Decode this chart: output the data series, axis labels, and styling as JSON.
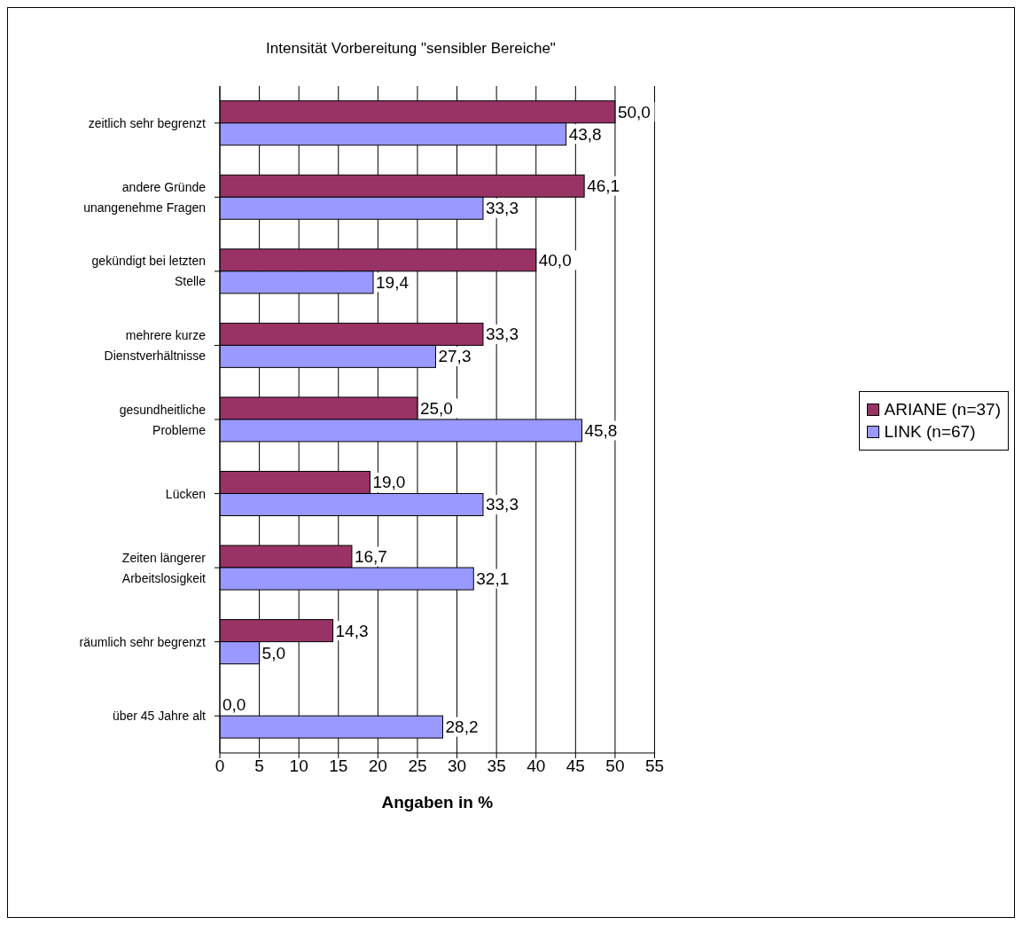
{
  "chart_data": {
    "type": "bar",
    "orientation": "horizontal",
    "title": "Intensität Vorbereitung \"sensibler Bereiche\"",
    "xlabel": "Angaben in %",
    "categories": [
      "zeitlich sehr begrenzt",
      "andere Gründe\nunangenehme Fragen",
      "gekündigt bei letzten\nStelle",
      "mehrere kurze\nDienstverhältnisse",
      "gesundheitliche\nProbleme",
      "Lücken",
      "Zeiten längerer\nArbeitslosigkeit",
      "räumlich sehr begrenzt",
      "über 45 Jahre alt"
    ],
    "series": [
      {
        "name": "ARIANE (n=37)",
        "color": "#993366",
        "values": [
          50.0,
          46.1,
          40.0,
          33.3,
          25.0,
          19.0,
          16.7,
          14.3,
          0.0
        ],
        "value_labels": [
          "50,0",
          "46,1",
          "40,0",
          "33,3",
          "25,0",
          "19,0",
          "16,7",
          "14,3",
          "0,0"
        ]
      },
      {
        "name": "LINK (n=67)",
        "color": "#9999ff",
        "values": [
          43.8,
          33.3,
          19.4,
          27.3,
          45.8,
          33.3,
          32.1,
          5.0,
          28.2
        ],
        "value_labels": [
          "43,8",
          "33,3",
          "19,4",
          "27,3",
          "45,8",
          "33,3",
          "32,1",
          "5,0",
          "28,2"
        ]
      }
    ],
    "xlim": [
      0,
      55
    ],
    "xticks": [
      0,
      5,
      10,
      15,
      20,
      25,
      30,
      35,
      40,
      45,
      50,
      55
    ],
    "grid": "x",
    "legend": "right"
  }
}
